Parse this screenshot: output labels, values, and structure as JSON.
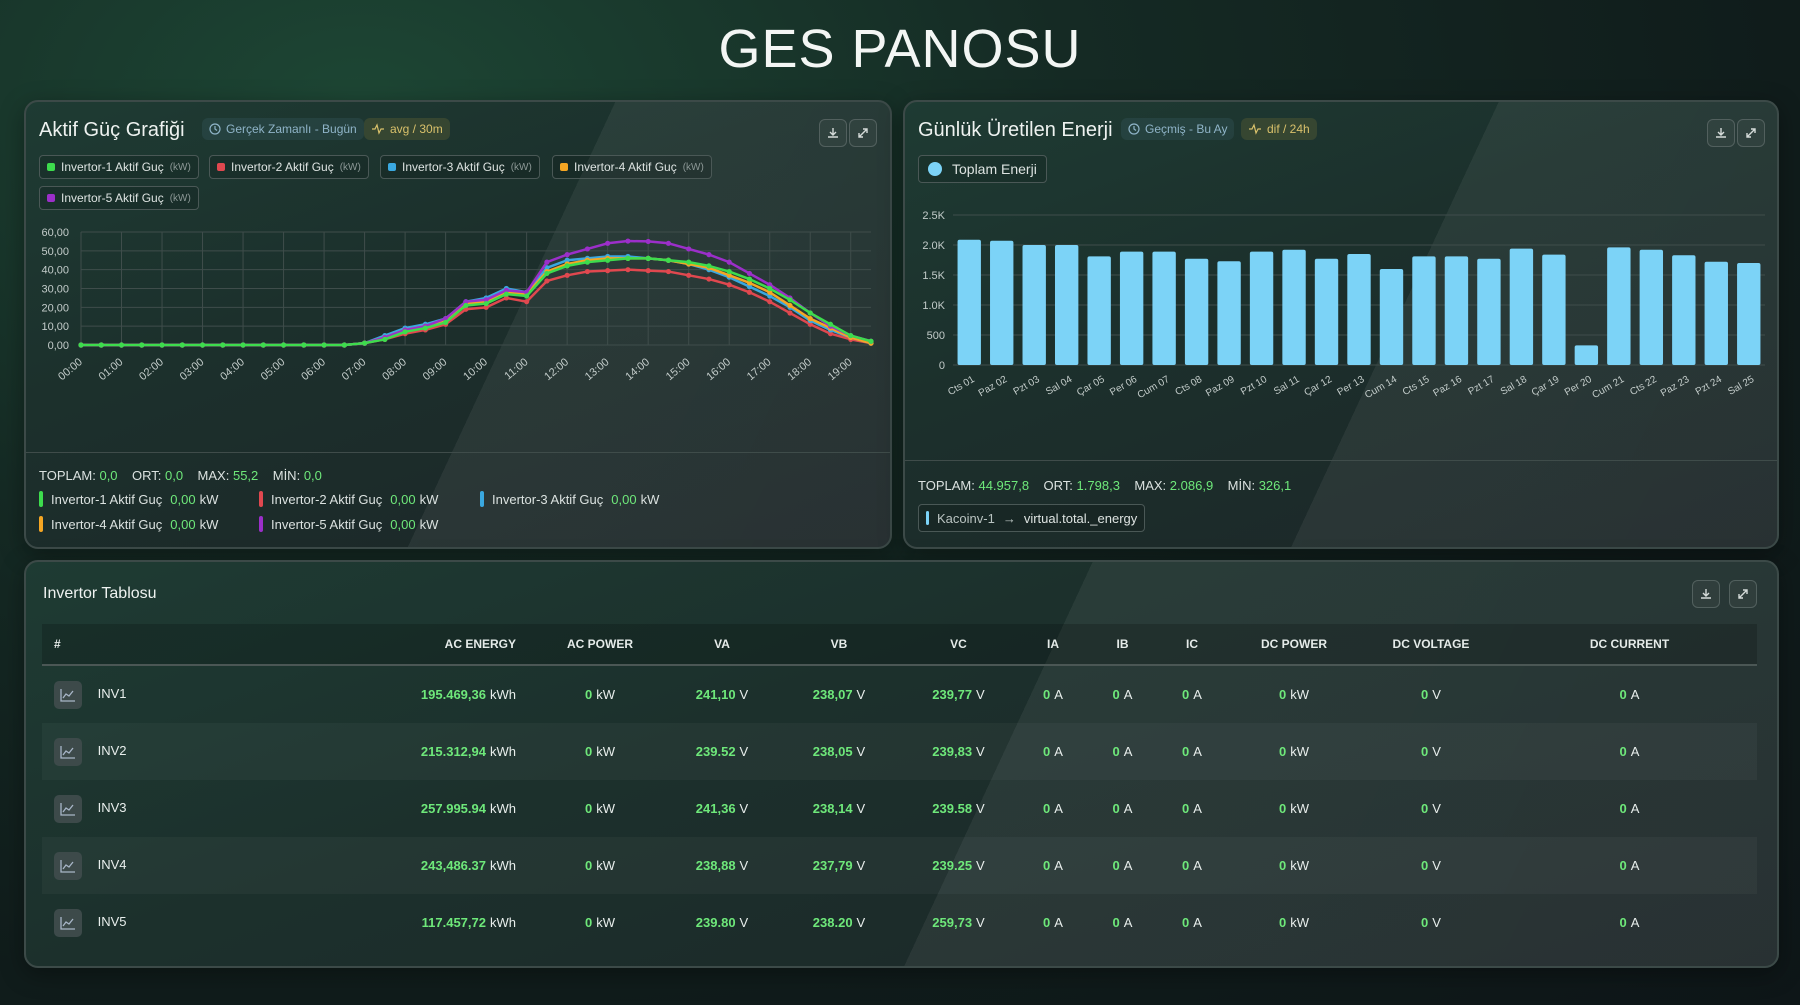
{
  "page_title": "GES PANOSU",
  "colors": {
    "inv1": "#3ddc4d",
    "inv2": "#e0484f",
    "inv3": "#3aa8e0",
    "inv4": "#f5a623",
    "inv5": "#9b2fc9",
    "bar": "#7cd3f7",
    "value": "#6ee87a"
  },
  "power_card": {
    "title": "Aktif Güç Grafiği",
    "time_chip": "Gerçek Zamanlı - Bugün",
    "agg_chip": "avg / 30m",
    "legend": [
      {
        "label": "Invertor-1 Aktif Guç",
        "unit": "(kW)"
      },
      {
        "label": "Invertor-2 Aktif Guç",
        "unit": "(kW)"
      },
      {
        "label": "Invertor-3 Aktif Guç",
        "unit": "(kW)"
      },
      {
        "label": "Invertor-4 Aktif Guç",
        "unit": "(kW)"
      },
      {
        "label": "Invertor-5 Aktif Guç",
        "unit": "(kW)"
      }
    ],
    "stats": {
      "total_label": "TOPLAM:",
      "total": "0,0",
      "avg_label": "ORT:",
      "avg": "0,0",
      "max_label": "MAX:",
      "max": "55,2",
      "min_label": "MİN:",
      "min": "0,0"
    },
    "current": [
      {
        "label": "Invertor-1 Aktif Guç",
        "value": "0,00",
        "unit": "kW"
      },
      {
        "label": "Invertor-2 Aktif Guç",
        "value": "0,00",
        "unit": "kW"
      },
      {
        "label": "Invertor-3 Aktif Guç",
        "value": "0,00",
        "unit": "kW"
      },
      {
        "label": "Invertor-4 Aktif Guç",
        "value": "0,00",
        "unit": "kW"
      },
      {
        "label": "Invertor-5 Aktif Guç",
        "value": "0,00",
        "unit": "kW"
      }
    ]
  },
  "energy_card": {
    "title": "Günlük Üretilen Enerji",
    "time_chip": "Geçmiş - Bu Ay",
    "agg_chip": "dif / 24h",
    "legend": "Toplam Enerji",
    "stats": {
      "total_label": "TOPLAM:",
      "total": "44.957,8",
      "avg_label": "ORT:",
      "avg": "1.798,3",
      "max_label": "MAX:",
      "max": "2.086,9",
      "min_label": "MİN:",
      "min": "326,1"
    },
    "source": "Kacoinv-1",
    "target": "virtual.total._energy"
  },
  "table_card": {
    "title": "Invertor Tablosu",
    "columns": [
      "#",
      "AC ENERGY",
      "AC POWER",
      "VA",
      "VB",
      "VC",
      "IA",
      "IB",
      "IC",
      "DC POWER",
      "DC VOLTAGE",
      "DC CURRENT"
    ],
    "rows": [
      {
        "name": "INV1",
        "ac_energy": "195.469,36",
        "ac_energy_unit": "kWh",
        "ac_power": "0",
        "ac_power_unit": "kW",
        "va": "241,10",
        "vb": "238,07",
        "vc": "239,77",
        "v_unit": "V",
        "ia": "0",
        "ib": "0",
        "ic": "0",
        "i_unit": "A",
        "dc_power": "0",
        "dc_power_unit": "kW",
        "dc_voltage": "0",
        "dc_voltage_unit": "V",
        "dc_current": "0",
        "dc_current_unit": "A"
      },
      {
        "name": "INV2",
        "ac_energy": "215.312,94",
        "ac_energy_unit": "kWh",
        "ac_power": "0",
        "ac_power_unit": "kW",
        "va": "239.52",
        "vb": "238,05",
        "vc": "239,83",
        "v_unit": "V",
        "ia": "0",
        "ib": "0",
        "ic": "0",
        "i_unit": "A",
        "dc_power": "0",
        "dc_power_unit": "kW",
        "dc_voltage": "0",
        "dc_voltage_unit": "V",
        "dc_current": "0",
        "dc_current_unit": "A"
      },
      {
        "name": "INV3",
        "ac_energy": "257.995.94",
        "ac_energy_unit": "kWh",
        "ac_power": "0",
        "ac_power_unit": "kW",
        "va": "241,36",
        "vb": "238,14",
        "vc": "239.58",
        "v_unit": "V",
        "ia": "0",
        "ib": "0",
        "ic": "0",
        "i_unit": "A",
        "dc_power": "0",
        "dc_power_unit": "kW",
        "dc_voltage": "0",
        "dc_voltage_unit": "V",
        "dc_current": "0",
        "dc_current_unit": "A"
      },
      {
        "name": "INV4",
        "ac_energy": "243,486.37",
        "ac_energy_unit": "kWh",
        "ac_power": "0",
        "ac_power_unit": "kW",
        "va": "238,88",
        "vb": "237,79",
        "vc": "239.25",
        "v_unit": "V",
        "ia": "0",
        "ib": "0",
        "ic": "0",
        "i_unit": "A",
        "dc_power": "0",
        "dc_power_unit": "kW",
        "dc_voltage": "0",
        "dc_voltage_unit": "V",
        "dc_current": "0",
        "dc_current_unit": "A"
      },
      {
        "name": "INV5",
        "ac_energy": "117.457,72",
        "ac_energy_unit": "kWh",
        "ac_power": "0",
        "ac_power_unit": "kW",
        "va": "239.80",
        "vb": "238.20",
        "vc": "259,73",
        "v_unit": "V",
        "ia": "0",
        "ib": "0",
        "ic": "0",
        "i_unit": "A",
        "dc_power": "0",
        "dc_power_unit": "kW",
        "dc_voltage": "0",
        "dc_voltage_unit": "V",
        "dc_current": "0",
        "dc_current_unit": "A"
      }
    ]
  },
  "chart_data": [
    {
      "type": "line",
      "x": [
        "00:00",
        "01:00",
        "02:00",
        "03:00",
        "04:00",
        "05:00",
        "06:00",
        "07:00",
        "08:00",
        "09:00",
        "10:00",
        "11:00",
        "12:00",
        "13:00",
        "14:00",
        "15:00",
        "16:00",
        "17:00",
        "18:00",
        "19:00"
      ],
      "x_values": [
        0,
        0.5,
        1,
        1.5,
        2,
        2.5,
        3,
        3.5,
        4,
        4.5,
        5,
        5.5,
        6,
        6.5,
        7,
        7.5,
        8,
        8.5,
        9,
        9.5,
        10,
        10.5,
        11,
        11.5,
        12,
        12.5,
        13,
        13.5,
        14,
        14.5,
        15,
        15.5,
        16,
        16.5,
        17,
        17.5,
        18,
        18.5,
        19,
        19.5
      ],
      "ylim": [
        0,
        60
      ],
      "yticks": [
        "0,00",
        "10,00",
        "20,00",
        "30,00",
        "40,00",
        "50,00",
        "60,00"
      ],
      "grid": true,
      "series": [
        {
          "name": "Invertor-1 Aktif Guç (kW)",
          "values": [
            0,
            0,
            0,
            0,
            0,
            0,
            0,
            0,
            0,
            0,
            0,
            0,
            0,
            0,
            1,
            3,
            7,
            9,
            12,
            21,
            22,
            27,
            26,
            38,
            42,
            44,
            45,
            46,
            46,
            45,
            44,
            42,
            39,
            35,
            30,
            24,
            17,
            11,
            5,
            2
          ]
        },
        {
          "name": "Invertor-2 Aktif Guç (kW)",
          "values": [
            0,
            0,
            0,
            0,
            0,
            0,
            0,
            0,
            0,
            0,
            0,
            0,
            0,
            0,
            1,
            3,
            6,
            8,
            11,
            19,
            20,
            25,
            23,
            34,
            37,
            39,
            39.5,
            40,
            39.5,
            39,
            37,
            35,
            32,
            28,
            23,
            17,
            11,
            6,
            3,
            1
          ]
        },
        {
          "name": "Invertor-3 Aktif Guç (kW)",
          "values": [
            0,
            0,
            0,
            0,
            0,
            0,
            0,
            0,
            0,
            0,
            0,
            0,
            0,
            0,
            1,
            5,
            9,
            11,
            14,
            23,
            25,
            30,
            28,
            41,
            45,
            46,
            47,
            47,
            46,
            45,
            43,
            40,
            36,
            31,
            26,
            20,
            13,
            8,
            4,
            1
          ]
        },
        {
          "name": "Invertor-4 Aktif Guç (kW)",
          "values": [
            0,
            0,
            0,
            0,
            0,
            0,
            0,
            0,
            0,
            0,
            0,
            0,
            0,
            0,
            1,
            4,
            8,
            10,
            13,
            22,
            23,
            28,
            27,
            39,
            43,
            45,
            46,
            46,
            46,
            45,
            43,
            41,
            37,
            33,
            28,
            21,
            14,
            9,
            4,
            1
          ]
        },
        {
          "name": "Invertor-5 Aktif Guç (kW)",
          "values": [
            0,
            0,
            0,
            0,
            0,
            0,
            0,
            0,
            0,
            0,
            0,
            0,
            0,
            0,
            1,
            4,
            8,
            10,
            14,
            23,
            24,
            29,
            28,
            44,
            48,
            51,
            54,
            55.2,
            55,
            54,
            51,
            48,
            44,
            38,
            32,
            25,
            17,
            10,
            5,
            2
          ]
        }
      ]
    },
    {
      "type": "bar",
      "categories": [
        "Cts 01",
        "Paz 02",
        "Pzt 03",
        "Sal 04",
        "Çar 05",
        "Per 06",
        "Cum 07",
        "Cts 08",
        "Paz 09",
        "Pzt 10",
        "Sal 11",
        "Çar 12",
        "Per 13",
        "Cum 14",
        "Cts 15",
        "Paz 16",
        "Pzt 17",
        "Sal 18",
        "Çar 19",
        "Per 20",
        "Cum 21",
        "Cts 22",
        "Paz 23",
        "Pzt 24",
        "Sal 25"
      ],
      "series": [
        {
          "name": "Toplam Enerji",
          "values": [
            2086.9,
            2070,
            2000,
            2000,
            1810,
            1890,
            1890,
            1770,
            1730,
            1890,
            1920,
            1770,
            1850,
            1600,
            1810,
            1810,
            1770,
            1940,
            1840,
            326.1,
            1960,
            1920,
            1830,
            1720,
            1700
          ]
        }
      ],
      "ylim": [
        0,
        2500
      ],
      "yticks": [
        "0",
        "500",
        "1.0K",
        "1.5K",
        "2.0K",
        "2.5K"
      ],
      "grid": true
    }
  ]
}
